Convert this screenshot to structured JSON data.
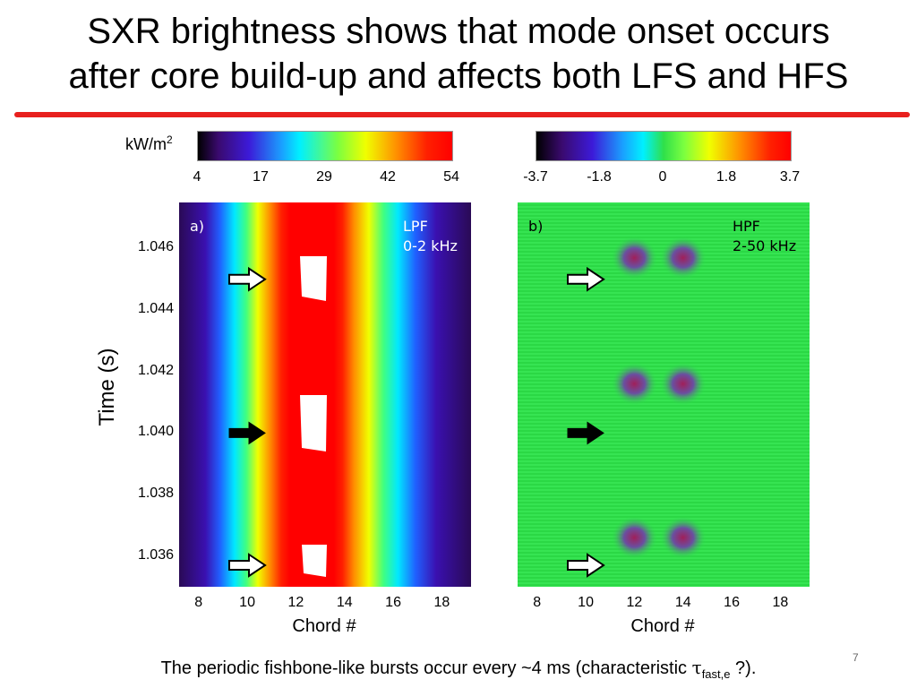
{
  "slide": {
    "title_line1": "SXR brightness shows that mode onset occurs",
    "title_line2": "after core build-up and affects both LFS and HFS",
    "caption_prefix": "The periodic fishbone-like bursts occur every ~4 ms (characteristic ",
    "caption_tau": "τ",
    "caption_sub": "fast,e",
    "caption_suffix": " ?).",
    "page_number": "7"
  },
  "colors": {
    "rule": "#e8201e",
    "lfs_background": "red-blue jet",
    "hpf_background": "#2fe04a"
  },
  "chart_data": [
    {
      "type": "heatmap",
      "panel_label": "a)",
      "filter_label_line1": "LPF",
      "filter_label_line2": "0-2 kHz",
      "colorbar_unit": "kW/m",
      "colorbar_unit_sup": "2",
      "colorbar_ticks": [
        "4",
        "17",
        "29",
        "42",
        "54"
      ],
      "colorbar_range": [
        4,
        54
      ],
      "xlabel": "Chord #",
      "ylabel": "Time (s)",
      "xticks": [
        "8",
        "10",
        "12",
        "14",
        "16",
        "18"
      ],
      "yticks": [
        "1.046",
        "1.044",
        "1.042",
        "1.040",
        "1.038",
        "1.036"
      ],
      "xlim": [
        7.2,
        19.2
      ],
      "ylim": [
        1.035,
        1.0475
      ],
      "arrows": [
        {
          "time": 1.045,
          "style": "hollow"
        },
        {
          "time": 1.04,
          "style": "filled"
        },
        {
          "time": 1.0357,
          "style": "hollow"
        }
      ]
    },
    {
      "type": "heatmap",
      "panel_label": "b)",
      "filter_label_line1": "HPF",
      "filter_label_line2": "2-50 kHz",
      "colorbar_ticks": [
        "-3.7",
        "-1.8",
        "0",
        "1.8",
        "3.7"
      ],
      "colorbar_range": [
        -3.7,
        3.7
      ],
      "xlabel": "Chord #",
      "xticks": [
        "8",
        "10",
        "12",
        "14",
        "16",
        "18"
      ],
      "xlim": [
        7.2,
        19.2
      ],
      "ylim": [
        1.035,
        1.0475
      ],
      "bursts": [
        {
          "time": 1.0457,
          "chords": [
            12,
            14
          ]
        },
        {
          "time": 1.0416,
          "chords": [
            12,
            14
          ]
        },
        {
          "time": 1.0366,
          "chords": [
            12,
            14
          ]
        }
      ],
      "arrows": [
        {
          "time": 1.045,
          "style": "hollow"
        },
        {
          "time": 1.04,
          "style": "filled"
        },
        {
          "time": 1.0357,
          "style": "hollow"
        }
      ]
    }
  ]
}
